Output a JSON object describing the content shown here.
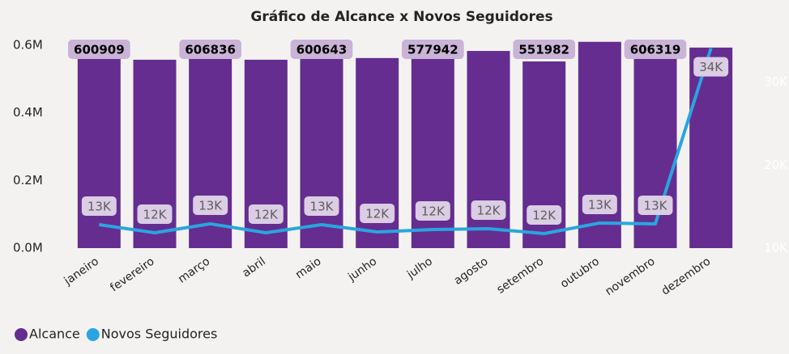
{
  "chart_data": {
    "type": "bar",
    "title": "Gráfico de Alcance x Novos Seguidores",
    "categories": [
      "janeiro",
      "fevereiro",
      "março",
      "abril",
      "maio",
      "junho",
      "julho",
      "agosto",
      "setembro",
      "outubro",
      "novembro",
      "dezembro"
    ],
    "series": [
      {
        "name": "Alcance",
        "type": "bar",
        "color": "#652d90",
        "values": [
          600909,
          557000,
          606836,
          557000,
          600643,
          562000,
          577942,
          583000,
          551982,
          610000,
          606319,
          593000
        ],
        "value_labels": [
          "600909",
          null,
          "606836",
          null,
          "600643",
          null,
          "577942",
          null,
          "551982",
          null,
          "606319",
          null
        ]
      },
      {
        "name": "Novos Seguidores",
        "type": "line",
        "axis": "y2",
        "color": "#2aa5df",
        "values": [
          12829,
          11854,
          12927,
          11854,
          12829,
          11951,
          12244,
          12341,
          11756,
          13024,
          12927,
          34098
        ],
        "value_labels": [
          "13K",
          "12K",
          "13K",
          "12K",
          "13K",
          "12K",
          "12K",
          "12K",
          "12K",
          "13K",
          "13K",
          "34K"
        ]
      }
    ],
    "ylim": [
      0,
      650000
    ],
    "yticks": [
      {
        "value": 0,
        "label": "0.0M"
      },
      {
        "value": 200000,
        "label": "0.2M"
      },
      {
        "value": 400000,
        "label": "0.4M"
      },
      {
        "value": 600000,
        "label": "0.6M"
      }
    ],
    "y2lim": [
      10000,
      36500
    ],
    "y2ticks": [
      {
        "value": 10000,
        "label": "10K"
      },
      {
        "value": 20000,
        "label": "20K"
      },
      {
        "value": 30000,
        "label": "30K"
      }
    ],
    "legend": "bottom-left"
  }
}
